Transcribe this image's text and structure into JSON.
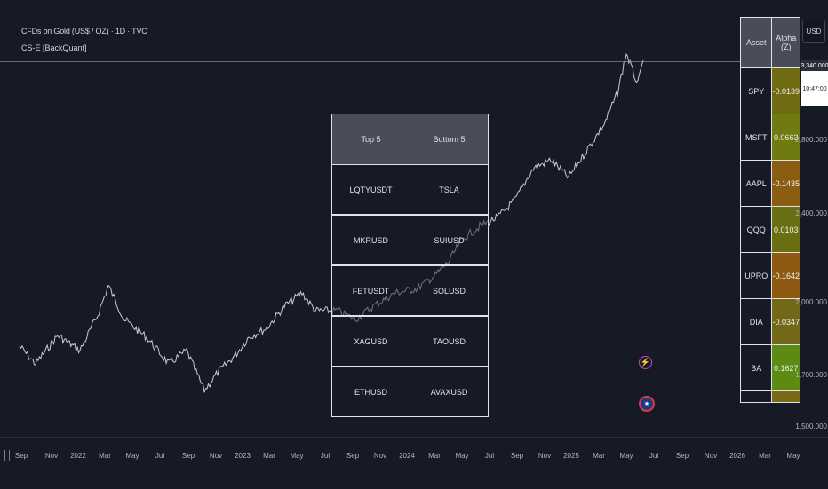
{
  "chart": {
    "symbol_title": "CFDs on Gold (US$ / OZ) · 1D · TVC",
    "indicator_name": "CS-E [BackQuant]",
    "currency": "USD",
    "last_price_label": "3,340.000",
    "countdown": "10:47:00"
  },
  "price_axis": {
    "labels": [
      "2,800.000",
      "2,400.000",
      "2,000.000",
      "1,700.000",
      "1,500.000"
    ]
  },
  "time_axis": {
    "ticks": [
      "Sep",
      "Nov",
      "2022",
      "Mar",
      "May",
      "Jul",
      "Sep",
      "Nov",
      "2023",
      "Mar",
      "May",
      "Jul",
      "Sep",
      "Nov",
      "2024",
      "Mar",
      "May",
      "Jul",
      "Sep",
      "Nov",
      "2025",
      "Mar",
      "May",
      "Jul",
      "Sep",
      "Nov",
      "2026",
      "Mar",
      "May"
    ]
  },
  "top_bottom_table": {
    "headers": [
      "Top 5",
      "Bottom 5"
    ],
    "rows": [
      [
        "LQTYUSDT",
        "TSLA"
      ],
      [
        "MKRUSD",
        "SUIUSD"
      ],
      [
        "FETUSDT",
        "SOLUSD"
      ],
      [
        "XAGUSD",
        "TAOUSD"
      ],
      [
        "ETHUSD",
        "AVAXUSD"
      ]
    ]
  },
  "asset_alpha_table": {
    "headers": [
      "Asset",
      "Alpha (Z)"
    ],
    "rows": [
      {
        "asset": "SPY",
        "alpha": "-0.0139",
        "color": "#6e6b12"
      },
      {
        "asset": "MSFT",
        "alpha": "0.0663",
        "color": "#6f7a10"
      },
      {
        "asset": "AAPL",
        "alpha": "-0.1435",
        "color": "#8a5d12"
      },
      {
        "asset": "QQQ",
        "alpha": "0.0103",
        "color": "#6a6e12"
      },
      {
        "asset": "UPRO",
        "alpha": "-0.1642",
        "color": "#8e5a12"
      },
      {
        "asset": "DIA",
        "alpha": "-0.0347",
        "color": "#72681a"
      },
      {
        "asset": "BA",
        "alpha": "0.1627",
        "color": "#5d8a12"
      },
      {
        "asset": "",
        "alpha": "",
        "color": "#7a6a14"
      }
    ]
  },
  "icons": {
    "bolt": "⚡",
    "flag": "★"
  }
}
